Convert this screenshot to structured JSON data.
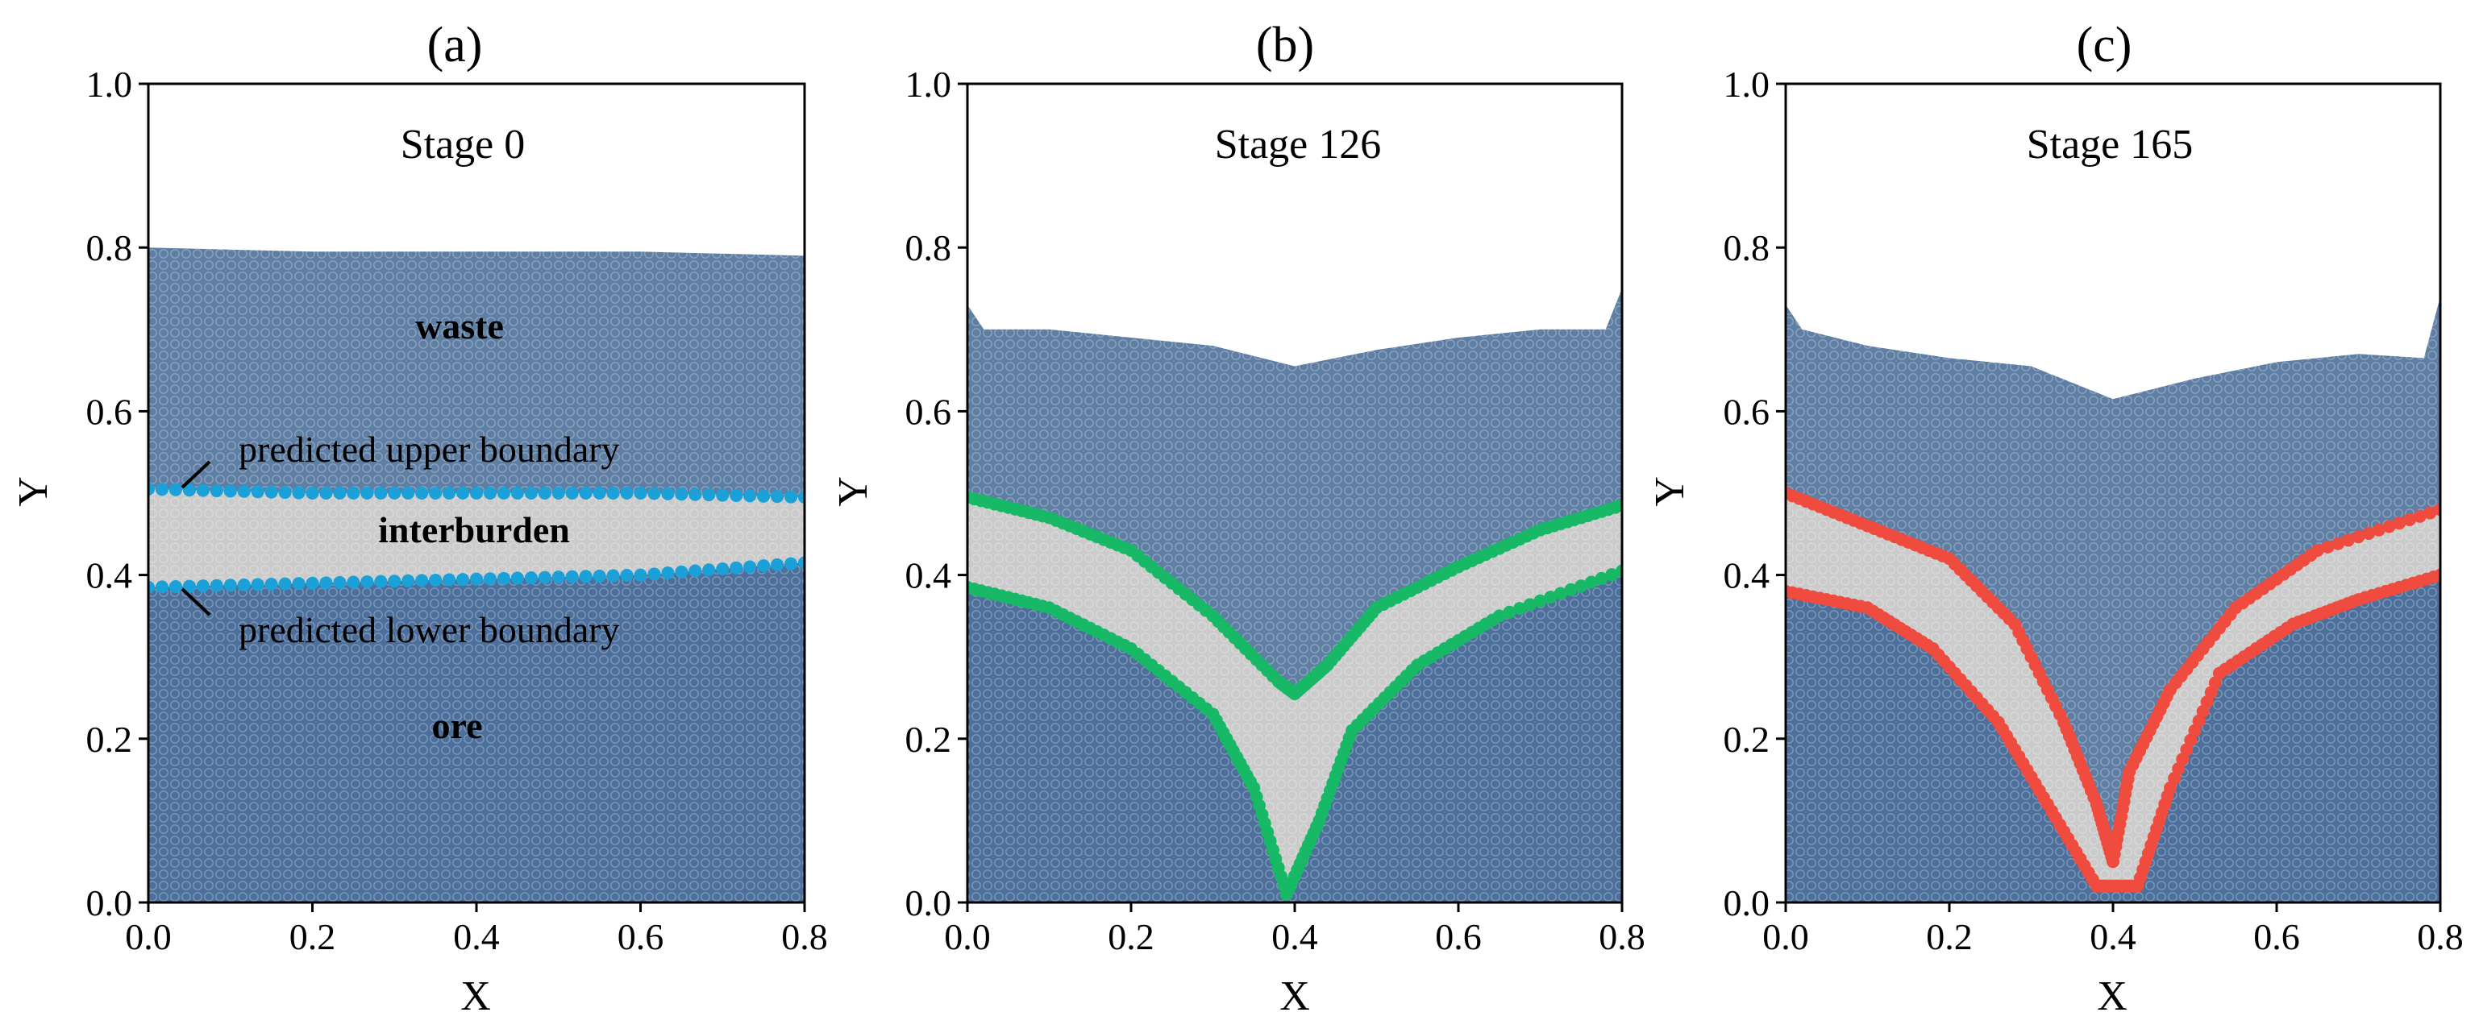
{
  "colors": {
    "waste": "#5e7ea3",
    "ore": "#4c6f9b",
    "interburden": "#cbcbcb",
    "boundary_a": "#1ca0d8",
    "boundary_b": "#17b866",
    "boundary_c": "#ef4b3f"
  },
  "chart_data": [
    {
      "type": "scatter",
      "panel_label": "(a)",
      "title": "Stage 0",
      "xlabel": "X",
      "ylabel": "Y",
      "xlim": [
        0.0,
        0.8
      ],
      "ylim": [
        0.0,
        1.0
      ],
      "xticks": [
        "0.0",
        "0.2",
        "0.4",
        "0.6",
        "0.8"
      ],
      "yticks": [
        "0.0",
        "0.2",
        "0.4",
        "0.6",
        "0.8",
        "1.0"
      ],
      "material_surface": [
        [
          0.0,
          0.8
        ],
        [
          0.2,
          0.795
        ],
        [
          0.4,
          0.795
        ],
        [
          0.6,
          0.795
        ],
        [
          0.8,
          0.79
        ]
      ],
      "upper_boundary": [
        [
          0.0,
          0.505
        ],
        [
          0.2,
          0.5
        ],
        [
          0.4,
          0.5
        ],
        [
          0.6,
          0.5
        ],
        [
          0.8,
          0.495
        ]
      ],
      "lower_boundary": [
        [
          0.0,
          0.385
        ],
        [
          0.2,
          0.39
        ],
        [
          0.4,
          0.395
        ],
        [
          0.6,
          0.4
        ],
        [
          0.8,
          0.415
        ]
      ],
      "region_labels": [
        "waste",
        "interburden",
        "ore"
      ],
      "annotations": [
        "predicted upper boundary",
        "predicted lower boundary"
      ]
    },
    {
      "type": "scatter",
      "panel_label": "(b)",
      "title": "Stage 126",
      "xlabel": "X",
      "ylabel": "Y",
      "xlim": [
        0.0,
        0.8
      ],
      "ylim": [
        0.0,
        1.0
      ],
      "xticks": [
        "0.0",
        "0.2",
        "0.4",
        "0.6",
        "0.8"
      ],
      "yticks": [
        "0.0",
        "0.2",
        "0.4",
        "0.6",
        "0.8",
        "1.0"
      ],
      "material_surface": [
        [
          0.0,
          0.73
        ],
        [
          0.02,
          0.7
        ],
        [
          0.1,
          0.7
        ],
        [
          0.2,
          0.69
        ],
        [
          0.3,
          0.68
        ],
        [
          0.4,
          0.655
        ],
        [
          0.5,
          0.675
        ],
        [
          0.6,
          0.69
        ],
        [
          0.7,
          0.7
        ],
        [
          0.78,
          0.7
        ],
        [
          0.8,
          0.75
        ]
      ],
      "upper_boundary": [
        [
          0.0,
          0.495
        ],
        [
          0.1,
          0.47
        ],
        [
          0.2,
          0.43
        ],
        [
          0.3,
          0.35
        ],
        [
          0.38,
          0.27
        ],
        [
          0.4,
          0.255
        ],
        [
          0.44,
          0.29
        ],
        [
          0.5,
          0.36
        ],
        [
          0.6,
          0.41
        ],
        [
          0.7,
          0.455
        ],
        [
          0.8,
          0.485
        ]
      ],
      "lower_boundary": [
        [
          0.0,
          0.385
        ],
        [
          0.1,
          0.36
        ],
        [
          0.2,
          0.31
        ],
        [
          0.3,
          0.23
        ],
        [
          0.35,
          0.14
        ],
        [
          0.39,
          0.01
        ],
        [
          0.43,
          0.1
        ],
        [
          0.47,
          0.21
        ],
        [
          0.55,
          0.29
        ],
        [
          0.65,
          0.35
        ],
        [
          0.8,
          0.405
        ]
      ]
    },
    {
      "type": "scatter",
      "panel_label": "(c)",
      "title": "Stage 165",
      "xlabel": "X",
      "ylabel": "Y",
      "xlim": [
        0.0,
        0.8
      ],
      "ylim": [
        0.0,
        1.0
      ],
      "xticks": [
        "0.0",
        "0.2",
        "0.4",
        "0.6",
        "0.8"
      ],
      "yticks": [
        "0.0",
        "0.2",
        "0.4",
        "0.6",
        "0.8",
        "1.0"
      ],
      "material_surface": [
        [
          0.0,
          0.73
        ],
        [
          0.02,
          0.7
        ],
        [
          0.1,
          0.68
        ],
        [
          0.2,
          0.665
        ],
        [
          0.3,
          0.655
        ],
        [
          0.4,
          0.615
        ],
        [
          0.5,
          0.64
        ],
        [
          0.6,
          0.66
        ],
        [
          0.7,
          0.67
        ],
        [
          0.78,
          0.665
        ],
        [
          0.8,
          0.74
        ]
      ],
      "upper_boundary": [
        [
          0.0,
          0.5
        ],
        [
          0.1,
          0.46
        ],
        [
          0.2,
          0.42
        ],
        [
          0.28,
          0.34
        ],
        [
          0.34,
          0.22
        ],
        [
          0.38,
          0.12
        ],
        [
          0.4,
          0.05
        ],
        [
          0.42,
          0.16
        ],
        [
          0.47,
          0.26
        ],
        [
          0.55,
          0.36
        ],
        [
          0.65,
          0.43
        ],
        [
          0.8,
          0.48
        ]
      ],
      "lower_boundary": [
        [
          0.0,
          0.38
        ],
        [
          0.1,
          0.36
        ],
        [
          0.18,
          0.31
        ],
        [
          0.26,
          0.22
        ],
        [
          0.32,
          0.12
        ],
        [
          0.38,
          0.02
        ],
        [
          0.43,
          0.02
        ],
        [
          0.47,
          0.14
        ],
        [
          0.53,
          0.28
        ],
        [
          0.62,
          0.34
        ],
        [
          0.7,
          0.37
        ],
        [
          0.8,
          0.4
        ]
      ]
    }
  ]
}
